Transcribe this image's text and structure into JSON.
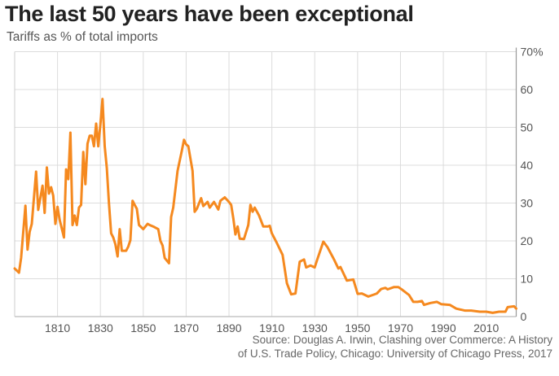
{
  "chart_data": {
    "type": "line",
    "title": "The last 50 years have been exceptional",
    "subtitle": "Tariffs as % of total imports",
    "source_lines": [
      "Source: Douglas A. Irwin, Clashing over Commerce: A History",
      "of U.S. Trade Policy, Chicago: University of Chicago Press, 2017"
    ],
    "xlim": [
      1790,
      2024
    ],
    "ylim": [
      0,
      70
    ],
    "x_ticks": [
      1810,
      1830,
      1850,
      1870,
      1890,
      1910,
      1930,
      1950,
      1970,
      1990,
      2010
    ],
    "y_ticks": [
      0,
      10,
      20,
      30,
      40,
      50,
      60,
      70
    ],
    "y_tick_labels": [
      "0",
      "10",
      "20",
      "30",
      "40",
      "50",
      "60",
      "70%"
    ],
    "y_axis_side": "right",
    "grid": true,
    "color": "#f5891f",
    "series": [
      {
        "x": [
          1790,
          1792,
          1793,
          1795,
          1796,
          1797,
          1798,
          1800,
          1801,
          1803,
          1804,
          1805,
          1806,
          1807,
          1808,
          1809,
          1810,
          1811,
          1813,
          1814,
          1815,
          1816,
          1817,
          1818,
          1819,
          1820,
          1821,
          1822,
          1823,
          1824,
          1825,
          1826,
          1827,
          1828,
          1829,
          1830,
          1831,
          1832,
          1833,
          1834,
          1835,
          1836,
          1837,
          1838,
          1839,
          1840,
          1842,
          1843,
          1844,
          1845,
          1846,
          1847,
          1848,
          1850,
          1852,
          1853,
          1855,
          1857,
          1858,
          1859,
          1860,
          1862,
          1863,
          1864,
          1866,
          1868,
          1869,
          1870,
          1871,
          1873,
          1874,
          1875,
          1877,
          1878,
          1880,
          1881,
          1883,
          1885,
          1886,
          1888,
          1890,
          1891,
          1892,
          1893,
          1894,
          1895,
          1897,
          1899,
          1900,
          1901,
          1902,
          1904,
          1906,
          1908,
          1909,
          1910,
          1912,
          1915,
          1917,
          1919,
          1921,
          1923,
          1925,
          1926,
          1928,
          1930,
          1931,
          1934,
          1936,
          1939,
          1941,
          1942,
          1945,
          1947,
          1948,
          1950,
          1952,
          1955,
          1957,
          1959,
          1961,
          1963,
          1964,
          1967,
          1969,
          1971,
          1974,
          1976,
          1978,
          1980,
          1981,
          1984,
          1987,
          1989,
          1993,
          1996,
          2000,
          2003,
          2007,
          2010,
          2013,
          2016,
          2019,
          2020,
          2023,
          2024
        ],
        "values": [
          12.7,
          11.6,
          15.5,
          29.3,
          17.7,
          22.4,
          24.5,
          38.3,
          28.2,
          34.6,
          27.4,
          39.4,
          32.5,
          34.2,
          32,
          24.5,
          29,
          25.6,
          20.9,
          38.9,
          36.3,
          48.6,
          24.2,
          26.7,
          24.2,
          28.8,
          29.5,
          43.5,
          35,
          45.7,
          47.8,
          47.8,
          45,
          51,
          45,
          50.8,
          57.5,
          45,
          39.2,
          30,
          22,
          20.9,
          19.1,
          15.9,
          23.1,
          17.4,
          17.4,
          18.5,
          20.2,
          30.6,
          29.5,
          28.5,
          24.2,
          23.1,
          24.5,
          24.2,
          23.7,
          23.1,
          20,
          18.8,
          15.5,
          14.1,
          26.3,
          28.8,
          38.5,
          43.9,
          46.7,
          45.5,
          45,
          38.5,
          27.7,
          28.5,
          31.3,
          29.2,
          30.3,
          28.8,
          30.3,
          28.3,
          30.6,
          31.5,
          30.3,
          29.5,
          26,
          21.7,
          23.8,
          20.6,
          20.5,
          24.2,
          29.5,
          27.7,
          28.8,
          26.7,
          23.8,
          23.8,
          24,
          22,
          19.8,
          16.3,
          8.8,
          5.9,
          6.1,
          14.5,
          15.1,
          13,
          13.5,
          13,
          14.8,
          19.8,
          18.3,
          15.1,
          12.7,
          13.1,
          9.5,
          9.7,
          9.8,
          6,
          6.1,
          5.3,
          5.7,
          6.1,
          7.3,
          7.6,
          7.2,
          7.8,
          7.8,
          7,
          5.7,
          3.9,
          3.9,
          4.1,
          3.1,
          3.6,
          3.9,
          3.3,
          3.1,
          2.1,
          1.6,
          1.6,
          1.3,
          1.3,
          1.0,
          1.3,
          1.3,
          2.5,
          2.7,
          2.1
        ]
      }
    ]
  }
}
